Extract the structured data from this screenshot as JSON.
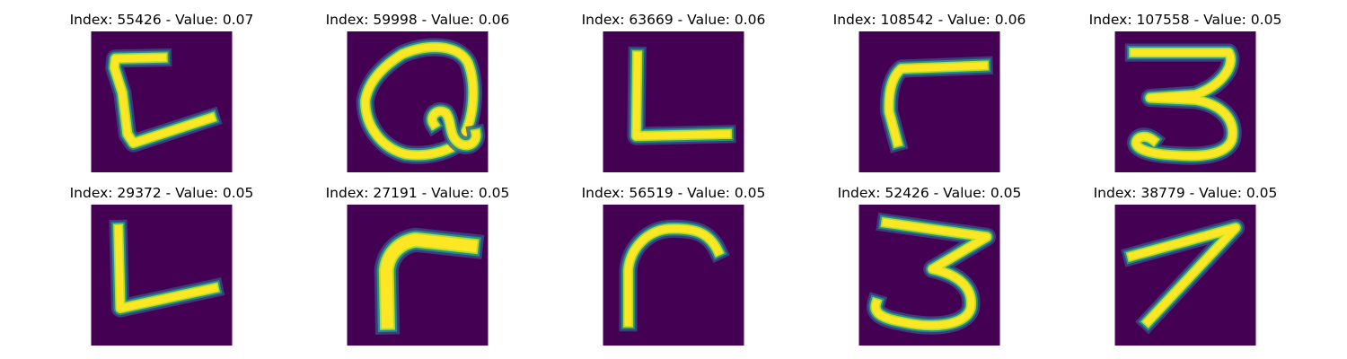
{
  "colors": {
    "background": "#440154",
    "stroke_core": "#fde725",
    "stroke_mid": "#b5de2b",
    "stroke_edge": "#21918c",
    "stroke_halo": "#3b528b"
  },
  "panels": [
    {
      "index": "55426",
      "value": "0.07",
      "title": "Index: 55426 - Value: 0.07",
      "glyph": "bracket-C"
    },
    {
      "index": "59998",
      "value": "0.06",
      "title": "Index: 59998 - Value: 0.06",
      "glyph": "Q-loop"
    },
    {
      "index": "63669",
      "value": "0.06",
      "title": "Index: 63669 - Value: 0.06",
      "glyph": "L"
    },
    {
      "index": "108542",
      "value": "0.06",
      "title": "Index: 108542 - Value: 0.06",
      "glyph": "gamma"
    },
    {
      "index": "107558",
      "value": "0.05",
      "title": "Index: 107558 - Value: 0.05",
      "glyph": "3"
    },
    {
      "index": "29372",
      "value": "0.05",
      "title": "Index: 29372 - Value: 0.05",
      "glyph": "L-slant"
    },
    {
      "index": "27191",
      "value": "0.05",
      "title": "Index: 27191 - Value: 0.05",
      "glyph": "r-thick"
    },
    {
      "index": "56519",
      "value": "0.05",
      "title": "Index: 56519 - Value: 0.05",
      "glyph": "r-arch"
    },
    {
      "index": "52426",
      "value": "0.05",
      "title": "Index: 52426 - Value: 0.05",
      "glyph": "3-bold"
    },
    {
      "index": "38779",
      "value": "0.05",
      "title": "Index: 38779 - Value: 0.05",
      "glyph": "7"
    }
  ]
}
